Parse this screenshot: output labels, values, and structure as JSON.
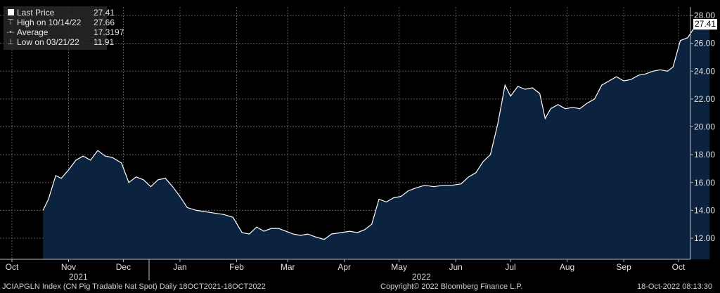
{
  "legend": {
    "last_price_label": "Last Price",
    "last_price_value": "27.41",
    "high_label": "High on 10/14/22",
    "high_value": "27.66",
    "average_label": "Average",
    "average_value": "17.3197",
    "low_label": "Low on 03/21/22",
    "low_value": "11.91"
  },
  "last_value_box": "27.41",
  "footer": {
    "left": "JCIAPGLN Index (CN Pig Tradable Nat Spot)  Daily 18OCT2021-18OCT2022",
    "center": "Copyright© 2022 Bloomberg Finance L.P.",
    "right": "18-Oct-2022 08:13:30"
  },
  "years": [
    "2021",
    "2022"
  ],
  "colors": {
    "background": "#000000",
    "area_fill": "#0c2340",
    "line": "#ffffff",
    "grid": "#5a5a5a"
  },
  "chart_data": {
    "type": "area",
    "title": "",
    "xlabel": "",
    "ylabel": "",
    "ylim": [
      11,
      28.2
    ],
    "yticks": [
      12,
      14,
      16,
      18,
      20,
      22,
      24,
      26,
      28
    ],
    "ytick_labels": [
      "12.00",
      "14.00",
      "16.00",
      "18.00",
      "20.00",
      "22.00",
      "24.00",
      "26.00",
      "28.00"
    ],
    "xlim": [
      "2021-10-01",
      "2022-10-20"
    ],
    "xticks": [
      {
        "label": "Oct",
        "date": "2021-10-01"
      },
      {
        "label": "Nov",
        "date": "2021-11-01"
      },
      {
        "label": "Dec",
        "date": "2021-12-01"
      },
      {
        "label": "Jan",
        "date": "2022-01-01"
      },
      {
        "label": "Feb",
        "date": "2022-02-01"
      },
      {
        "label": "Mar",
        "date": "2022-03-01"
      },
      {
        "label": "Apr",
        "date": "2022-04-01"
      },
      {
        "label": "May",
        "date": "2022-05-01"
      },
      {
        "label": "Jun",
        "date": "2022-06-01"
      },
      {
        "label": "Jul",
        "date": "2022-07-01"
      },
      {
        "label": "Aug",
        "date": "2022-08-01"
      },
      {
        "label": "Sep",
        "date": "2022-09-01"
      },
      {
        "label": "Oct",
        "date": "2022-10-01"
      }
    ],
    "grid": true,
    "series": [
      {
        "name": "Last Price",
        "x": [
          "2021-10-18",
          "2021-10-21",
          "2021-10-25",
          "2021-10-28",
          "2021-11-01",
          "2021-11-05",
          "2021-11-09",
          "2021-11-13",
          "2021-11-17",
          "2021-11-21",
          "2021-11-25",
          "2021-11-30",
          "2021-12-04",
          "2021-12-08",
          "2021-12-12",
          "2021-12-16",
          "2021-12-20",
          "2021-12-24",
          "2021-12-28",
          "2022-01-01",
          "2022-01-05",
          "2022-01-10",
          "2022-01-15",
          "2022-01-20",
          "2022-01-25",
          "2022-01-30",
          "2022-02-04",
          "2022-02-08",
          "2022-02-12",
          "2022-02-16",
          "2022-02-20",
          "2022-02-24",
          "2022-02-28",
          "2022-03-04",
          "2022-03-08",
          "2022-03-12",
          "2022-03-16",
          "2022-03-21",
          "2022-03-25",
          "2022-03-30",
          "2022-04-04",
          "2022-04-08",
          "2022-04-12",
          "2022-04-16",
          "2022-04-20",
          "2022-04-24",
          "2022-04-28",
          "2022-05-02",
          "2022-05-06",
          "2022-05-10",
          "2022-05-15",
          "2022-05-20",
          "2022-05-25",
          "2022-05-30",
          "2022-06-04",
          "2022-06-08",
          "2022-06-12",
          "2022-06-16",
          "2022-06-20",
          "2022-06-24",
          "2022-06-28",
          "2022-07-01",
          "2022-07-05",
          "2022-07-09",
          "2022-07-13",
          "2022-07-17",
          "2022-07-20",
          "2022-07-23",
          "2022-07-27",
          "2022-07-31",
          "2022-08-04",
          "2022-08-08",
          "2022-08-12",
          "2022-08-16",
          "2022-08-20",
          "2022-08-24",
          "2022-08-28",
          "2022-09-01",
          "2022-09-05",
          "2022-09-09",
          "2022-09-13",
          "2022-09-17",
          "2022-09-21",
          "2022-09-25",
          "2022-09-28",
          "2022-10-02",
          "2022-10-06",
          "2022-10-10",
          "2022-10-14",
          "2022-10-18"
        ],
        "values": [
          14.0,
          14.8,
          16.5,
          16.3,
          16.9,
          17.6,
          17.9,
          17.6,
          18.3,
          17.9,
          17.8,
          17.4,
          16.0,
          16.4,
          16.2,
          15.7,
          16.2,
          16.3,
          15.7,
          15.0,
          14.2,
          14.0,
          13.9,
          13.8,
          13.7,
          13.5,
          12.4,
          12.3,
          12.8,
          12.5,
          12.7,
          12.7,
          12.5,
          12.3,
          12.2,
          12.3,
          12.1,
          11.91,
          12.3,
          12.4,
          12.5,
          12.4,
          12.6,
          13.0,
          14.8,
          14.6,
          14.9,
          15.0,
          15.4,
          15.6,
          15.8,
          15.7,
          15.8,
          15.8,
          15.9,
          16.4,
          16.7,
          17.5,
          18.0,
          20.2,
          23.0,
          22.2,
          22.9,
          22.7,
          22.8,
          22.4,
          20.6,
          21.3,
          21.6,
          21.3,
          21.4,
          21.3,
          21.7,
          22.0,
          23.0,
          23.3,
          23.6,
          23.3,
          23.4,
          23.7,
          23.8,
          24.0,
          24.1,
          24.0,
          24.3,
          26.2,
          26.4,
          27.2,
          27.66,
          27.41
        ]
      }
    ]
  }
}
